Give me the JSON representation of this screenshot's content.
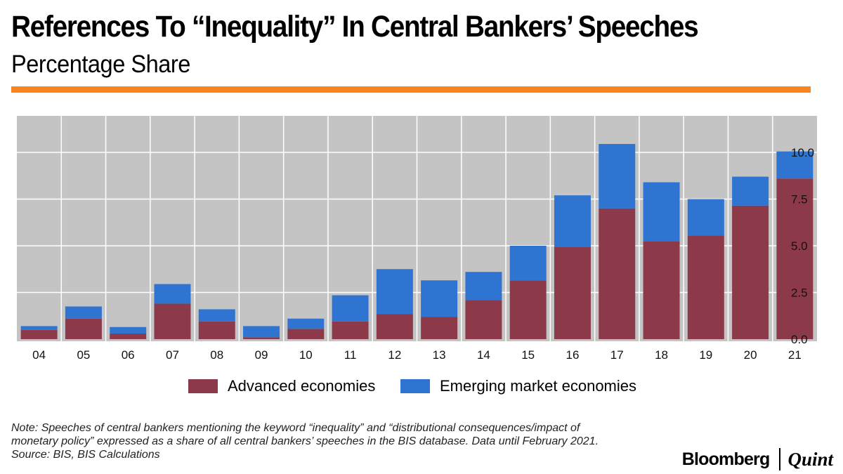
{
  "header": {
    "title": "References To “Inequality” In Central Bankers’ Speeches",
    "subtitle": "Percentage Share",
    "accent_color": "#f7861e"
  },
  "chart_data": {
    "type": "bar",
    "stacked": true,
    "categories": [
      "04",
      "05",
      "06",
      "07",
      "08",
      "09",
      "10",
      "11",
      "12",
      "13",
      "14",
      "15",
      "16",
      "17",
      "18",
      "19",
      "20",
      "21"
    ],
    "series": [
      {
        "name": "Advanced economies",
        "color": "#8c3a4a",
        "values": [
          0.5,
          1.1,
          0.3,
          1.9,
          0.95,
          0.1,
          0.55,
          0.95,
          1.35,
          1.2,
          2.1,
          3.15,
          4.95,
          7.0,
          5.25,
          5.55,
          7.15,
          8.6
        ]
      },
      {
        "name": "Emerging market economies",
        "color": "#2f74d0",
        "values": [
          0.2,
          0.65,
          0.35,
          1.05,
          0.65,
          0.6,
          0.55,
          1.4,
          2.4,
          1.95,
          1.5,
          1.85,
          2.75,
          3.45,
          3.15,
          1.95,
          1.55,
          1.45
        ]
      }
    ],
    "y_ticks": [
      "0.0",
      "2.5",
      "5.0",
      "7.5",
      "10.0"
    ],
    "y_tick_values": [
      0,
      2.5,
      5.0,
      7.5,
      10.0
    ],
    "ylim": [
      0,
      10.5
    ],
    "y_axis_side": "right",
    "grid": true,
    "plot_background": "#c4c4c4",
    "legend_position": "bottom"
  },
  "footer": {
    "note_lines": [
      "Note: Speeches of central bankers mentioning the keyword “inequality” and “distributional consequences/impact of",
      "monetary policy” expressed as a share of all central bankers’ speeches in the BIS database. Data until February 2021.",
      "Source: BIS, BIS Calculations"
    ],
    "logo_left": "Bloomberg",
    "logo_right": "Quint"
  }
}
